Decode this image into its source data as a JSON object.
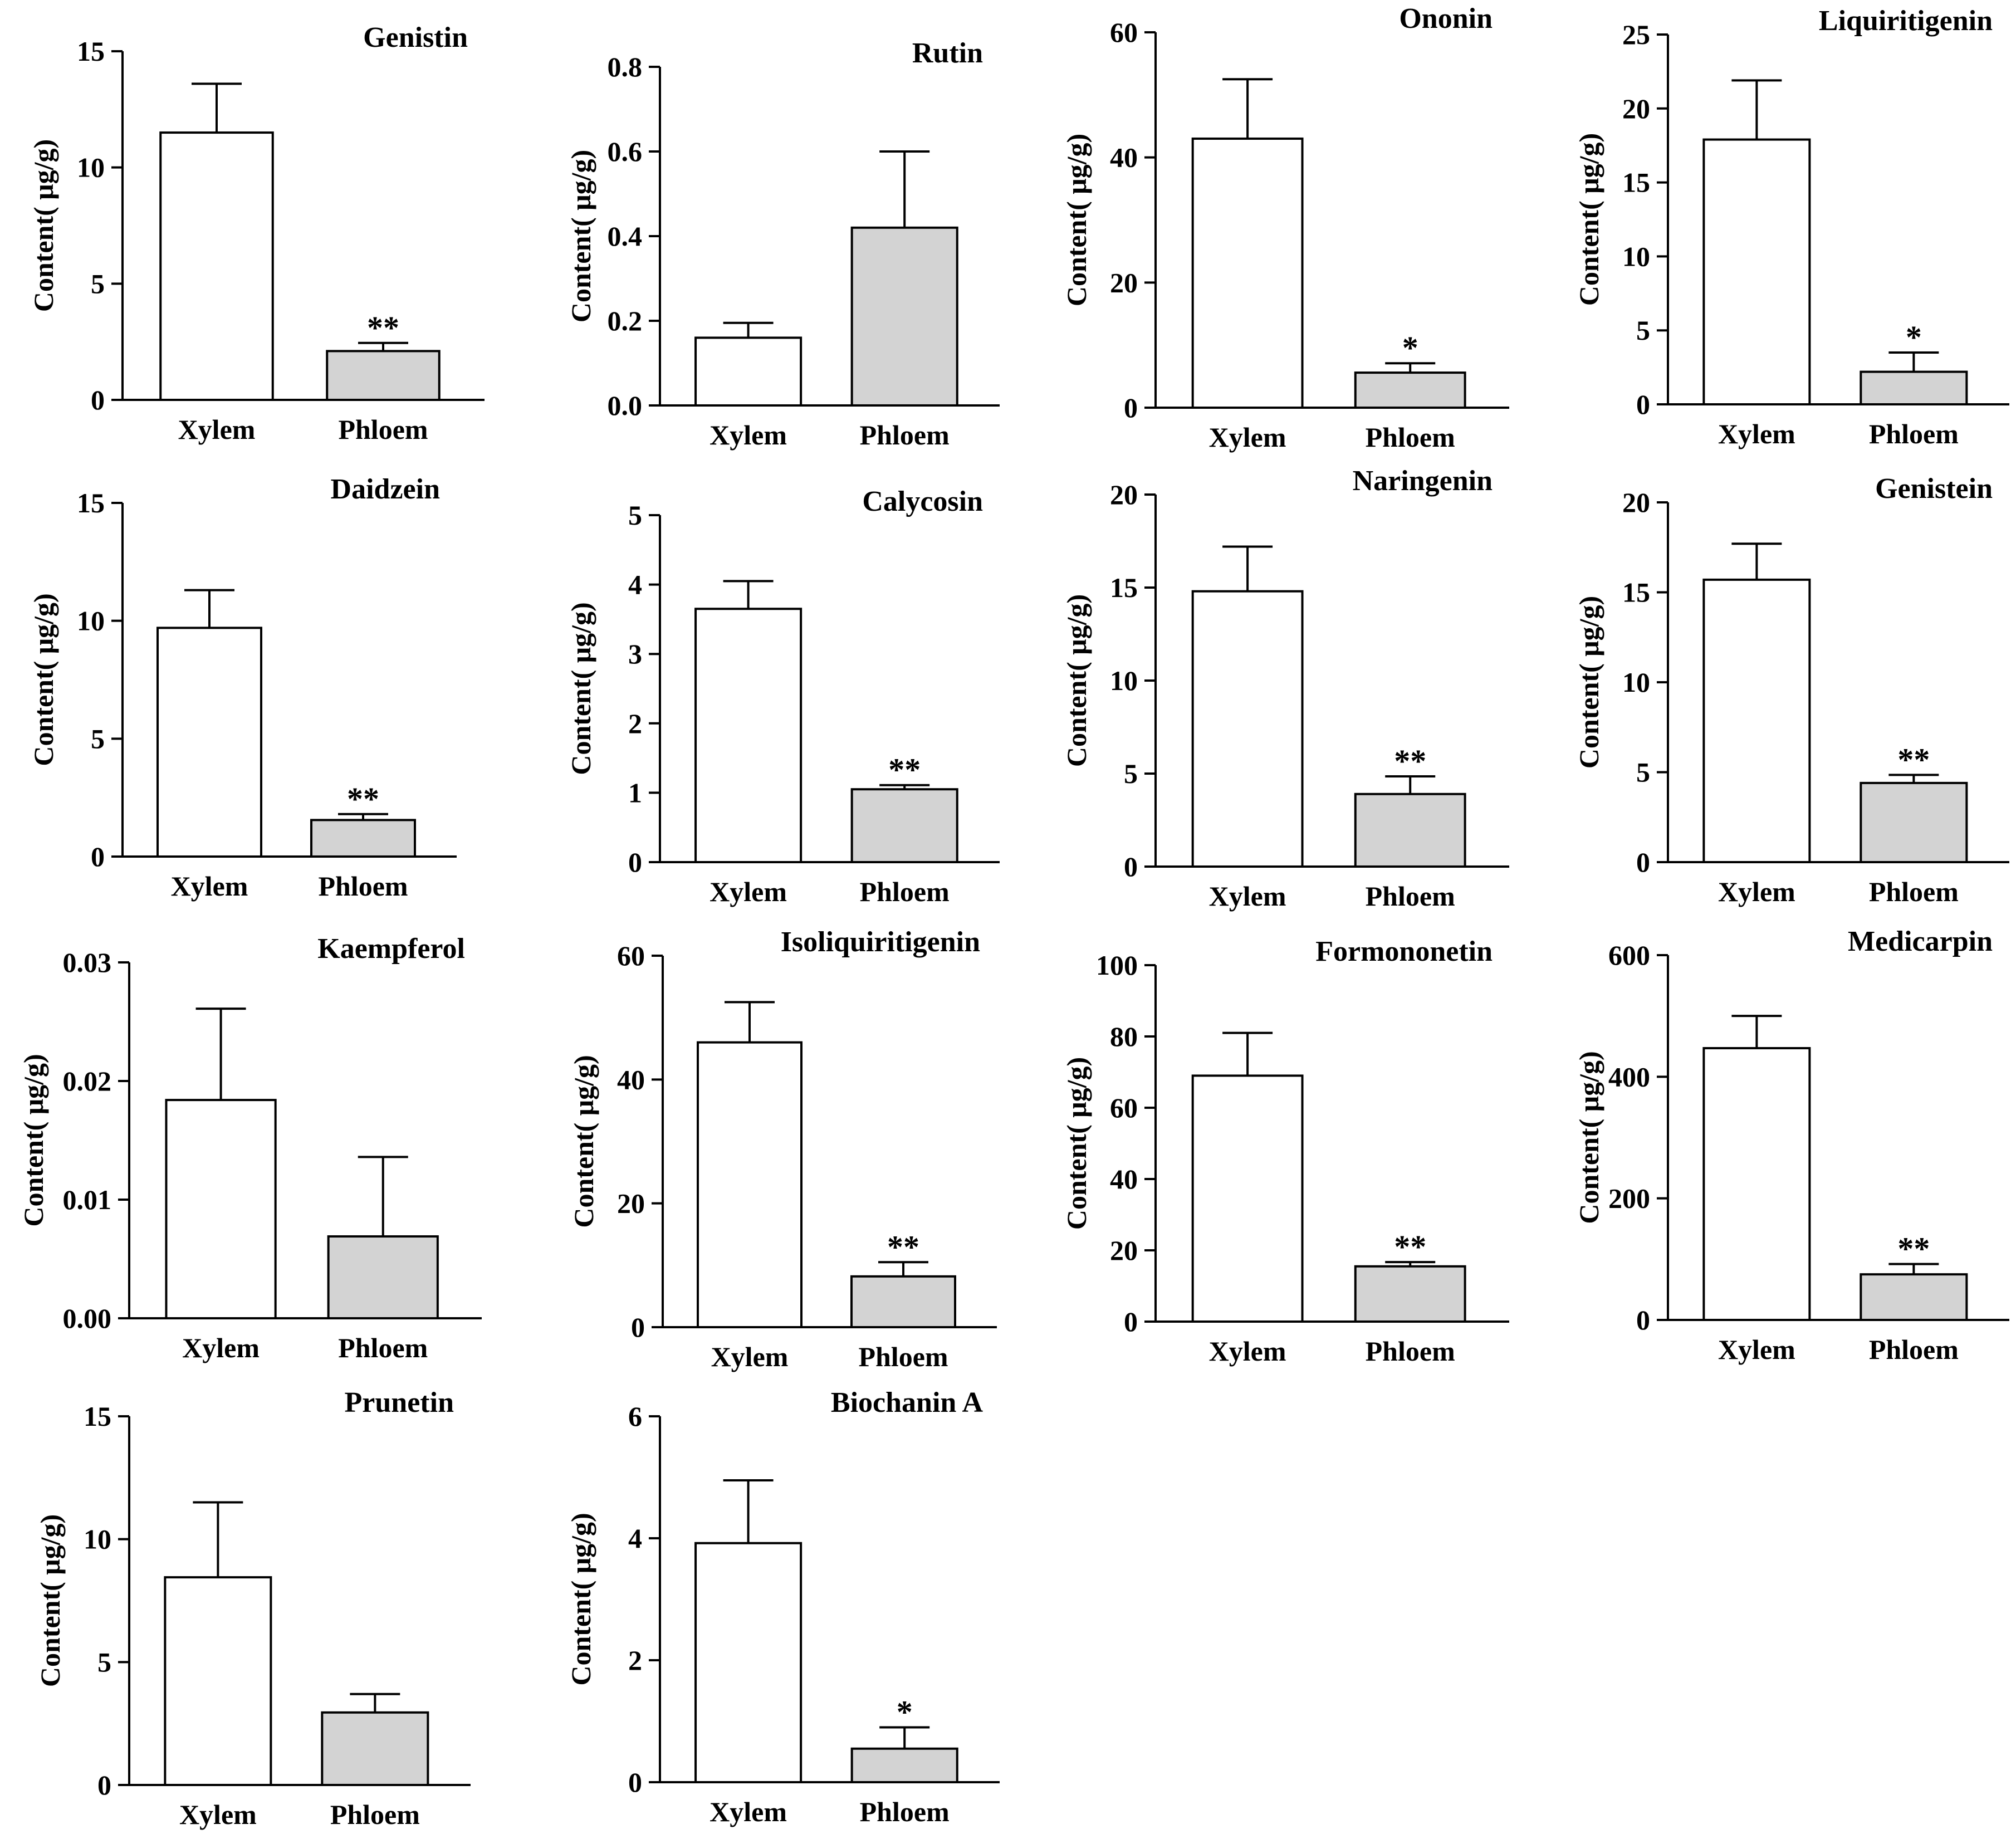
{
  "figure": {
    "bar_fill_colors": {
      "Xylem": "#ffffff",
      "Phloem": "#d3d3d3"
    },
    "stroke_color": "#000000"
  },
  "chart_data": [
    {
      "type": "bar",
      "title": "Genistin",
      "ylabel": "Content( μg/g)",
      "categories": [
        "Xylem",
        "Phloem"
      ],
      "values": [
        11.5,
        2.1
      ],
      "errors": [
        2.1,
        0.35
      ],
      "significance": [
        "",
        "**"
      ],
      "ylim": [
        0,
        15
      ],
      "yticks": [
        "0",
        "5",
        "10",
        "15"
      ]
    },
    {
      "type": "bar",
      "title": "Rutin",
      "ylabel": "Content( μg/g)",
      "categories": [
        "Xylem",
        "Phloem"
      ],
      "values": [
        0.16,
        0.42
      ],
      "errors": [
        0.035,
        0.18
      ],
      "significance": [
        "",
        ""
      ],
      "ylim": [
        0,
        0.8
      ],
      "yticks": [
        "0.0",
        "0.2",
        "0.4",
        "0.6",
        "0.8"
      ]
    },
    {
      "type": "bar",
      "title": "Ononin",
      "ylabel": "Content( μg/g)",
      "categories": [
        "Xylem",
        "Phloem"
      ],
      "values": [
        43,
        5.6
      ],
      "errors": [
        9.5,
        1.5
      ],
      "significance": [
        "",
        "*"
      ],
      "ylim": [
        0,
        60
      ],
      "yticks": [
        "0",
        "20",
        "40",
        "60"
      ]
    },
    {
      "type": "bar",
      "title": "Liquiritigenin",
      "ylabel": "Content( μg/g)",
      "categories": [
        "Xylem",
        "Phloem"
      ],
      "values": [
        17.9,
        2.2
      ],
      "errors": [
        4.0,
        1.3
      ],
      "significance": [
        "",
        "*"
      ],
      "ylim": [
        0,
        25
      ],
      "yticks": [
        "0",
        "5",
        "10",
        "15",
        "20",
        "25"
      ]
    },
    {
      "type": "bar",
      "title": "Daidzein",
      "ylabel": "Content( μg/g)",
      "categories": [
        "Xylem",
        "Phloem"
      ],
      "values": [
        9.7,
        1.55
      ],
      "errors": [
        1.6,
        0.25
      ],
      "significance": [
        "",
        "**"
      ],
      "ylim": [
        0,
        15
      ],
      "yticks": [
        "0",
        "5",
        "10",
        "15"
      ]
    },
    {
      "type": "bar",
      "title": "Calycosin",
      "ylabel": "Content( μg/g)",
      "categories": [
        "Xylem",
        "Phloem"
      ],
      "values": [
        3.65,
        1.05
      ],
      "errors": [
        0.4,
        0.06
      ],
      "significance": [
        "",
        "**"
      ],
      "ylim": [
        0,
        5
      ],
      "yticks": [
        "0",
        "1",
        "2",
        "3",
        "4",
        "5"
      ]
    },
    {
      "type": "bar",
      "title": "Naringenin",
      "ylabel": "Content( μg/g)",
      "categories": [
        "Xylem",
        "Phloem"
      ],
      "values": [
        14.8,
        3.9
      ],
      "errors": [
        2.4,
        0.95
      ],
      "significance": [
        "",
        "**"
      ],
      "ylim": [
        0,
        20
      ],
      "yticks": [
        "0",
        "5",
        "10",
        "15",
        "20"
      ]
    },
    {
      "type": "bar",
      "title": "Genistein",
      "ylabel": "Content( μg/g)",
      "categories": [
        "Xylem",
        "Phloem"
      ],
      "values": [
        15.7,
        4.4
      ],
      "errors": [
        2.0,
        0.45
      ],
      "significance": [
        "",
        "**"
      ],
      "ylim": [
        0,
        20
      ],
      "yticks": [
        "0",
        "5",
        "10",
        "15",
        "20"
      ]
    },
    {
      "type": "bar",
      "title": "Kaempferol",
      "ylabel": "Content( μg/g)",
      "categories": [
        "Xylem",
        "Phloem"
      ],
      "values": [
        0.0184,
        0.0069
      ],
      "errors": [
        0.0077,
        0.0067
      ],
      "significance": [
        "",
        ""
      ],
      "ylim": [
        0,
        0.03
      ],
      "yticks": [
        "0.00",
        "0.01",
        "0.02",
        "0.03"
      ]
    },
    {
      "type": "bar",
      "title": "Isoliquiritigenin",
      "ylabel": "Content( μg/g)",
      "categories": [
        "Xylem",
        "Phloem"
      ],
      "values": [
        46,
        8.2
      ],
      "errors": [
        6.5,
        2.3
      ],
      "significance": [
        "",
        "**"
      ],
      "ylim": [
        0,
        60
      ],
      "yticks": [
        "0",
        "20",
        "40",
        "60"
      ]
    },
    {
      "type": "bar",
      "title": "Formononetin",
      "ylabel": "Content( μg/g)",
      "categories": [
        "Xylem",
        "Phloem"
      ],
      "values": [
        69,
        15.5
      ],
      "errors": [
        12,
        1.2
      ],
      "significance": [
        "",
        "**"
      ],
      "ylim": [
        0,
        100
      ],
      "yticks": [
        "0",
        "20",
        "40",
        "60",
        "80",
        "100"
      ]
    },
    {
      "type": "bar",
      "title": "Medicarpin",
      "ylabel": "Content( μg/g)",
      "categories": [
        "Xylem",
        "Phloem"
      ],
      "values": [
        447,
        75
      ],
      "errors": [
        53,
        17
      ],
      "significance": [
        "",
        "**"
      ],
      "ylim": [
        0,
        600
      ],
      "yticks": [
        "0",
        "200",
        "400",
        "600"
      ]
    },
    {
      "type": "bar",
      "title": "Prunetin",
      "ylabel": "Content( μg/g)",
      "categories": [
        "Xylem",
        "Phloem"
      ],
      "values": [
        8.45,
        2.95
      ],
      "errors": [
        3.05,
        0.75
      ],
      "significance": [
        "",
        ""
      ],
      "ylim": [
        0,
        15
      ],
      "yticks": [
        "0",
        "5",
        "10",
        "15"
      ]
    },
    {
      "type": "bar",
      "title": "Biochanin A",
      "ylabel": "Content( μg/g)",
      "categories": [
        "Xylem",
        "Phloem"
      ],
      "values": [
        3.92,
        0.55
      ],
      "errors": [
        1.03,
        0.35
      ],
      "significance": [
        "",
        "*"
      ],
      "ylim": [
        0,
        6
      ],
      "yticks": [
        "0",
        "2",
        "4",
        "6"
      ]
    }
  ]
}
